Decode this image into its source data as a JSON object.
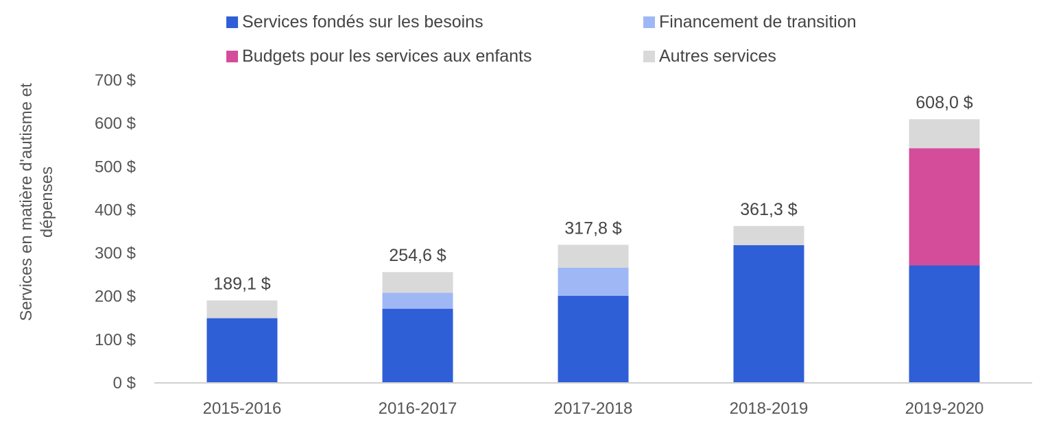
{
  "chart_data": {
    "type": "bar",
    "stacked": true,
    "title": "",
    "xlabel": "",
    "ylabel": "Services en matière d'autisme et dépenses",
    "ylim": [
      0,
      700
    ],
    "yticks": [
      0,
      100,
      200,
      300,
      400,
      500,
      600,
      700
    ],
    "ytick_labels": [
      "0 $",
      "100 $",
      "200 $",
      "300 $",
      "400 $",
      "500 $",
      "600 $",
      "700 $"
    ],
    "grid": false,
    "legend_position": "top",
    "categories": [
      "2015-2016",
      "2016-2017",
      "2017-2018",
      "2018-2019",
      "2019-2020"
    ],
    "series": [
      {
        "name": "Services fondés sur les besoins",
        "color": "#2f5fd6",
        "values": [
          148,
          170,
          200,
          317,
          270
        ]
      },
      {
        "name": "Financement de transition",
        "color": "#9fb8f5",
        "values": [
          0,
          37,
          65,
          0,
          0
        ]
      },
      {
        "name": "Budgets pour les services aux enfants",
        "color": "#d44d9a",
        "values": [
          0,
          0,
          0,
          0,
          271
        ]
      },
      {
        "name": "Autres services",
        "color": "#d9d9d9",
        "values": [
          41.1,
          47.6,
          52.8,
          44.3,
          67
        ]
      }
    ],
    "totals": [
      189.1,
      254.6,
      317.8,
      361.3,
      608.0
    ],
    "total_labels": [
      "189,1 $",
      "254,6 $",
      "317,8 $",
      "361,3 $",
      "608,0 $"
    ]
  }
}
